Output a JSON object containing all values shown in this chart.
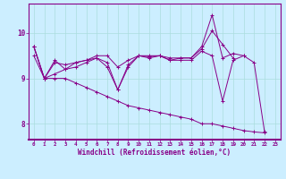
{
  "xlabel": "Windchill (Refroidissement éolien,°C)",
  "ylabel": "",
  "bg_color": "#cceeff",
  "line_color": "#880088",
  "xlim": [
    -0.5,
    23.5
  ],
  "ylim": [
    7.65,
    10.65
  ],
  "yticks": [
    8,
    9,
    10
  ],
  "ytick_labels": [
    "8",
    "9",
    "10"
  ],
  "xticks": [
    0,
    1,
    2,
    3,
    4,
    5,
    6,
    7,
    8,
    9,
    10,
    11,
    12,
    13,
    14,
    15,
    16,
    17,
    18,
    19,
    20,
    21,
    22,
    23
  ],
  "series": [
    [
      9.7,
      9.0,
      9.4,
      9.2,
      9.35,
      9.4,
      9.45,
      9.35,
      8.75,
      9.25,
      9.5,
      9.45,
      9.5,
      9.4,
      9.4,
      9.4,
      9.6,
      9.5,
      8.5,
      9.4,
      9.5,
      9.35,
      7.82
    ],
    [
      9.5,
      9.0,
      9.35,
      9.3,
      9.35,
      9.4,
      9.5,
      9.5,
      9.25,
      9.4,
      9.5,
      9.5,
      9.5,
      9.45,
      9.45,
      9.45,
      9.65,
      10.05,
      9.75,
      9.45,
      null,
      null,
      null
    ],
    [
      9.7,
      9.0,
      9.1,
      9.2,
      9.25,
      9.35,
      9.45,
      9.25,
      8.75,
      9.3,
      9.5,
      9.48,
      9.5,
      9.4,
      9.45,
      9.45,
      9.7,
      10.4,
      9.45,
      9.55,
      9.5,
      null,
      null
    ],
    [
      9.7,
      9.0,
      9.0,
      9.0,
      8.9,
      8.8,
      8.7,
      8.6,
      8.5,
      8.4,
      8.35,
      8.3,
      8.25,
      8.2,
      8.15,
      8.1,
      8.0,
      8.0,
      7.95,
      7.9,
      7.85,
      7.82,
      7.8
    ]
  ]
}
